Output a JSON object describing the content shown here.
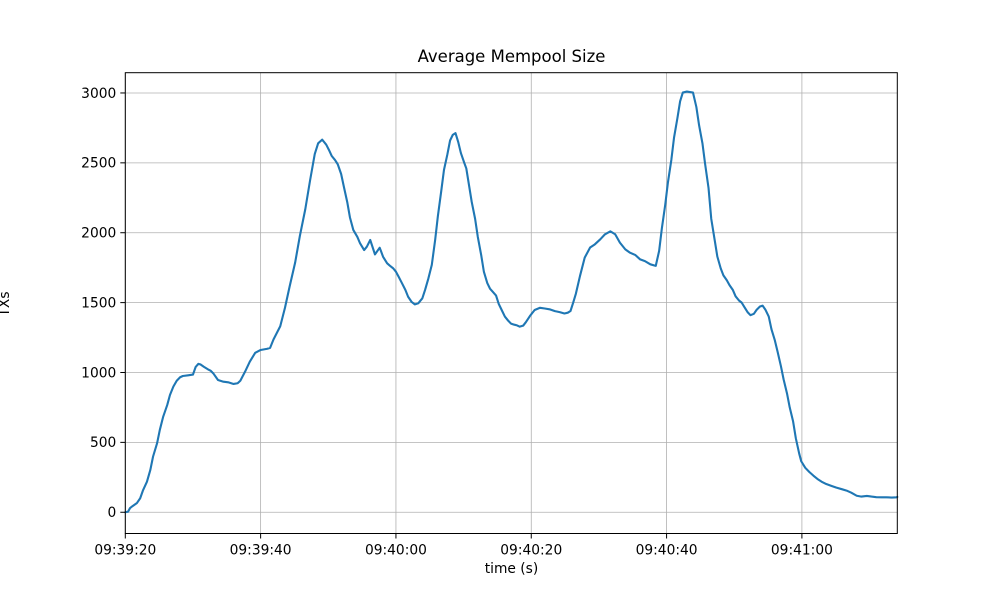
{
  "figure": {
    "background": "#ffffff"
  },
  "chart_data": {
    "type": "line",
    "title": "Average Mempool Size",
    "xlabel": "time (s)",
    "ylabel": "TXs",
    "grid": true,
    "legend": "none",
    "line_color": "#1f77b4",
    "grid_color": "#b0b0b0",
    "spine_color": "#000000",
    "x_tick_labels": [
      "09:39:20",
      "09:39:40",
      "09:40:00",
      "09:40:20",
      "09:40:40",
      "09:41:00"
    ],
    "x_tick_seconds": [
      0,
      20,
      40,
      60,
      80,
      100
    ],
    "y_ticks": [
      0,
      500,
      1000,
      1500,
      2000,
      2500,
      3000
    ],
    "xlim_seconds": [
      0,
      114.1
    ],
    "ylim": [
      -152,
      3145
    ],
    "series": [
      {
        "name": "average-mempool-size",
        "points": [
          [
            0,
            0
          ],
          [
            0.4,
            4
          ],
          [
            0.7,
            30
          ],
          [
            1.1,
            45
          ],
          [
            1.7,
            65
          ],
          [
            2.2,
            100
          ],
          [
            2.6,
            155
          ],
          [
            3.2,
            219
          ],
          [
            3.7,
            303
          ],
          [
            4.1,
            398
          ],
          [
            4.7,
            494
          ],
          [
            5.1,
            589
          ],
          [
            5.6,
            684
          ],
          [
            6.2,
            768
          ],
          [
            6.6,
            839
          ],
          [
            7.1,
            899
          ],
          [
            7.6,
            941
          ],
          [
            8.1,
            966
          ],
          [
            8.5,
            975
          ],
          [
            9.3,
            980
          ],
          [
            10.0,
            985
          ],
          [
            10.4,
            1040
          ],
          [
            10.8,
            1062
          ],
          [
            11.1,
            1058
          ],
          [
            11.6,
            1041
          ],
          [
            12.2,
            1023
          ],
          [
            12.6,
            1013
          ],
          [
            13.0,
            994
          ],
          [
            13.7,
            946
          ],
          [
            14.5,
            934
          ],
          [
            15.2,
            930
          ],
          [
            16.0,
            918
          ],
          [
            16.6,
            923
          ],
          [
            17.0,
            941
          ],
          [
            17.7,
            1006
          ],
          [
            18.4,
            1077
          ],
          [
            19.2,
            1141
          ],
          [
            20.0,
            1161
          ],
          [
            21.0,
            1170
          ],
          [
            21.4,
            1176
          ],
          [
            21.9,
            1236
          ],
          [
            22.9,
            1331
          ],
          [
            23.6,
            1463
          ],
          [
            24.3,
            1618
          ],
          [
            25.1,
            1786
          ],
          [
            25.8,
            1977
          ],
          [
            26.6,
            2168
          ],
          [
            27.3,
            2372
          ],
          [
            28.0,
            2563
          ],
          [
            28.5,
            2640
          ],
          [
            29.1,
            2666
          ],
          [
            29.7,
            2630
          ],
          [
            30.1,
            2592
          ],
          [
            30.5,
            2550
          ],
          [
            31.0,
            2520
          ],
          [
            31.4,
            2490
          ],
          [
            31.9,
            2420
          ],
          [
            32.3,
            2330
          ],
          [
            32.8,
            2220
          ],
          [
            33.2,
            2110
          ],
          [
            33.7,
            2020
          ],
          [
            34.3,
            1970
          ],
          [
            34.7,
            1924
          ],
          [
            35.3,
            1876
          ],
          [
            35.7,
            1900
          ],
          [
            36.2,
            1948
          ],
          [
            36.9,
            1845
          ],
          [
            37.6,
            1893
          ],
          [
            38.1,
            1828
          ],
          [
            38.7,
            1781
          ],
          [
            39.1,
            1764
          ],
          [
            39.6,
            1745
          ],
          [
            40.0,
            1721
          ],
          [
            40.4,
            1685
          ],
          [
            40.9,
            1638
          ],
          [
            41.4,
            1590
          ],
          [
            41.8,
            1542
          ],
          [
            42.3,
            1506
          ],
          [
            42.8,
            1487
          ],
          [
            43.3,
            1495
          ],
          [
            43.9,
            1531
          ],
          [
            44.3,
            1590
          ],
          [
            44.8,
            1674
          ],
          [
            45.3,
            1770
          ],
          [
            45.8,
            1950
          ],
          [
            46.2,
            2120
          ],
          [
            46.7,
            2300
          ],
          [
            47.1,
            2450
          ],
          [
            47.6,
            2560
          ],
          [
            48.0,
            2660
          ],
          [
            48.4,
            2700
          ],
          [
            48.8,
            2713
          ],
          [
            49.2,
            2650
          ],
          [
            49.6,
            2570
          ],
          [
            50.1,
            2500
          ],
          [
            50.4,
            2460
          ],
          [
            50.8,
            2340
          ],
          [
            51.2,
            2220
          ],
          [
            51.7,
            2100
          ],
          [
            52.1,
            1970
          ],
          [
            52.6,
            1840
          ],
          [
            53.0,
            1720
          ],
          [
            53.5,
            1640
          ],
          [
            53.9,
            1600
          ],
          [
            54.3,
            1578
          ],
          [
            54.8,
            1550
          ],
          [
            55.2,
            1490
          ],
          [
            55.7,
            1440
          ],
          [
            56.1,
            1400
          ],
          [
            56.6,
            1370
          ],
          [
            57.0,
            1350
          ],
          [
            57.5,
            1342
          ],
          [
            57.9,
            1337
          ],
          [
            58.3,
            1328
          ],
          [
            58.8,
            1335
          ],
          [
            59.2,
            1360
          ],
          [
            59.8,
            1404
          ],
          [
            60.5,
            1447
          ],
          [
            61.3,
            1463
          ],
          [
            62.0,
            1458
          ],
          [
            62.8,
            1451
          ],
          [
            63.5,
            1439
          ],
          [
            64.2,
            1432
          ],
          [
            64.9,
            1422
          ],
          [
            65.4,
            1428
          ],
          [
            65.8,
            1440
          ],
          [
            66.2,
            1500
          ],
          [
            66.6,
            1565
          ],
          [
            67.2,
            1690
          ],
          [
            67.9,
            1822
          ],
          [
            68.7,
            1894
          ],
          [
            69.4,
            1917
          ],
          [
            70.2,
            1953
          ],
          [
            70.9,
            1989
          ],
          [
            71.7,
            2010
          ],
          [
            72.4,
            1989
          ],
          [
            73.1,
            1929
          ],
          [
            73.9,
            1881
          ],
          [
            74.6,
            1857
          ],
          [
            75.4,
            1840
          ],
          [
            76.1,
            1809
          ],
          [
            76.8,
            1797
          ],
          [
            77.6,
            1774
          ],
          [
            78.4,
            1763
          ],
          [
            78.9,
            1870
          ],
          [
            79.3,
            2030
          ],
          [
            79.8,
            2200
          ],
          [
            80.2,
            2360
          ],
          [
            80.7,
            2520
          ],
          [
            81.1,
            2680
          ],
          [
            81.6,
            2820
          ],
          [
            82.0,
            2940
          ],
          [
            82.4,
            3003
          ],
          [
            83.0,
            3010
          ],
          [
            83.9,
            3003
          ],
          [
            84.4,
            2900
          ],
          [
            84.8,
            2770
          ],
          [
            85.3,
            2640
          ],
          [
            85.7,
            2490
          ],
          [
            86.2,
            2320
          ],
          [
            86.6,
            2100
          ],
          [
            87.1,
            1950
          ],
          [
            87.5,
            1830
          ],
          [
            88.0,
            1745
          ],
          [
            88.4,
            1695
          ],
          [
            88.9,
            1660
          ],
          [
            89.3,
            1625
          ],
          [
            89.8,
            1590
          ],
          [
            90.2,
            1545
          ],
          [
            90.7,
            1515
          ],
          [
            91.1,
            1500
          ],
          [
            91.5,
            1468
          ],
          [
            92.0,
            1430
          ],
          [
            92.4,
            1410
          ],
          [
            92.9,
            1420
          ],
          [
            93.3,
            1448
          ],
          [
            93.8,
            1472
          ],
          [
            94.2,
            1478
          ],
          [
            94.6,
            1450
          ],
          [
            95.1,
            1400
          ],
          [
            95.5,
            1310
          ],
          [
            96.0,
            1230
          ],
          [
            96.4,
            1150
          ],
          [
            96.9,
            1045
          ],
          [
            97.3,
            950
          ],
          [
            97.8,
            850
          ],
          [
            98.2,
            750
          ],
          [
            98.7,
            650
          ],
          [
            99.1,
            530
          ],
          [
            99.6,
            420
          ],
          [
            99.9,
            365
          ],
          [
            100.5,
            318
          ],
          [
            101.1,
            288
          ],
          [
            101.7,
            262
          ],
          [
            102.3,
            238
          ],
          [
            102.9,
            219
          ],
          [
            103.6,
            202
          ],
          [
            104.4,
            188
          ],
          [
            105.1,
            176
          ],
          [
            105.9,
            165
          ],
          [
            106.6,
            155
          ],
          [
            107.3,
            140
          ],
          [
            108.1,
            118
          ],
          [
            108.8,
            112
          ],
          [
            109.6,
            117
          ],
          [
            110.3,
            112
          ],
          [
            111.0,
            108
          ],
          [
            111.8,
            107
          ],
          [
            112.5,
            107
          ],
          [
            113.3,
            105
          ],
          [
            114.0,
            107
          ],
          [
            114.1,
            110
          ]
        ]
      }
    ]
  }
}
